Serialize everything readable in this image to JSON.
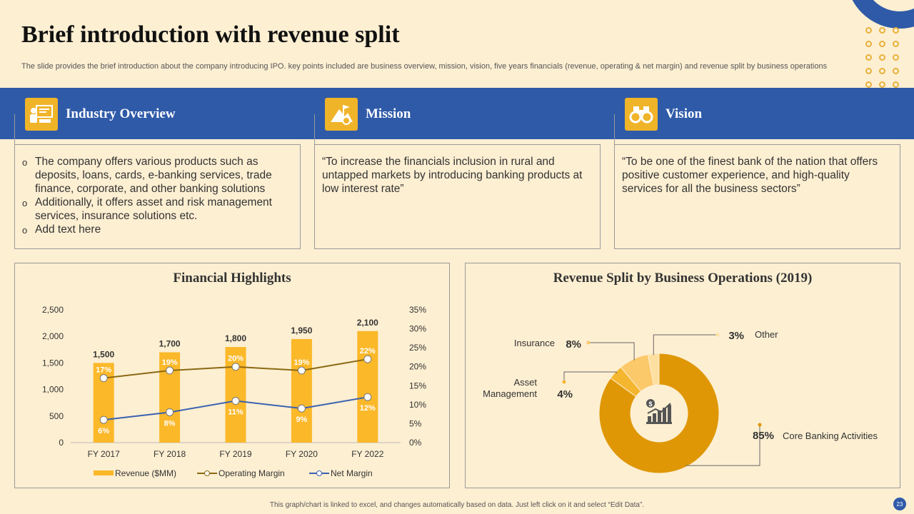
{
  "header": {
    "title": "Brief introduction with revenue split",
    "subtitle": "The slide provides the brief introduction about the company introducing IPO. key points included are business overview, mission, vision, five years financials (revenue, operating & net margin) and revenue split by business operations"
  },
  "sections": [
    {
      "label": "Industry  Overview",
      "icon": "presentation-icon",
      "bullets": [
        "The company offers various products such as deposits, loans, cards, e-banking services, trade finance, corporate, and other banking solutions",
        "Additionally, it offers asset and risk management services, insurance solutions etc.",
        "Add text here"
      ]
    },
    {
      "label": "Mission",
      "icon": "mountain-flag-icon",
      "text": "“To increase the financials inclusion in rural and untapped markets by introducing banking products at low interest rate”"
    },
    {
      "label": "Vision",
      "icon": "binoculars-icon",
      "text": "“To be one of the finest bank of the nation that offers positive customer experience, and high-quality services for all the business sectors”"
    }
  ],
  "colors": {
    "blue": "#2f5aa8",
    "gold": "#f0b429",
    "bg": "#fdefd2",
    "brown": "#8b6914"
  },
  "chart_data": [
    {
      "type": "bar",
      "title": "Financial Highlights",
      "categories": [
        "FY 2017",
        "FY 2018",
        "FY 2019",
        "FY 2020",
        "FY 2022"
      ],
      "series": [
        {
          "name": "Revenue ($MM)",
          "kind": "bar",
          "axis": "left",
          "values": [
            1500,
            1700,
            1800,
            1950,
            2100
          ],
          "labels": [
            "1,500",
            "1,700",
            "1,800",
            "1,950",
            "2,100"
          ]
        },
        {
          "name": "Operating Margin",
          "kind": "line",
          "axis": "right",
          "values": [
            17,
            19,
            20,
            19,
            22
          ],
          "labels": [
            "17%",
            "19%",
            "20%",
            "19%",
            "22%"
          ]
        },
        {
          "name": "Net Margin",
          "kind": "line",
          "axis": "right",
          "values": [
            6,
            8,
            11,
            9,
            12
          ],
          "labels": [
            "6%",
            "8%",
            "11%",
            "9%",
            "12%"
          ]
        }
      ],
      "ylim_left": [
        0,
        2500
      ],
      "yticks_left": [
        "0",
        "500",
        "1,000",
        "1,500",
        "2,000",
        "2,500"
      ],
      "ylim_right": [
        0,
        35
      ],
      "yticks_right": [
        "0%",
        "5%",
        "10%",
        "15%",
        "20%",
        "25%",
        "30%",
        "35%"
      ],
      "legend": "bottom"
    },
    {
      "type": "pie",
      "title": "Revenue Split by Business Operations (2019)",
      "slices": [
        {
          "label": "Core Banking Activities",
          "value": 85,
          "pct": "85%",
          "color": "#df9705"
        },
        {
          "label": "Asset\nManagement",
          "value": 4,
          "pct": "4%",
          "color": "#f5b62f"
        },
        {
          "label": "Insurance",
          "value": 8,
          "pct": "8%",
          "color": "#fbc86a"
        },
        {
          "label": "Other",
          "value": 3,
          "pct": "3%",
          "color": "#fde0a0"
        }
      ],
      "center_icon": "money-growth-chart-icon"
    }
  ],
  "footer": {
    "note": "This graph/chart is linked to excel, and changes automatically based on data. Just left click on it and select “Edit Data”.",
    "page": "23"
  }
}
